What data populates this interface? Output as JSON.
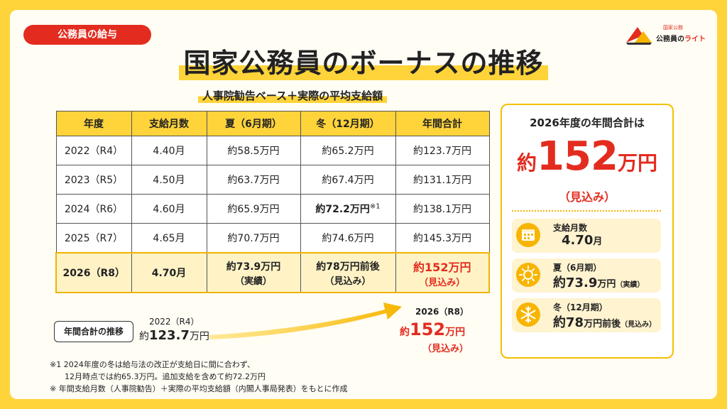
{
  "tag": "公務員の給与",
  "logo": {
    "small": "国家公務",
    "brand_prefix": "公務員の",
    "brand_accent": "ライト"
  },
  "title": "国家公務員のボーナスの推移",
  "subtitle": "人事院勧告ベース＋実際の平均支給額",
  "table": {
    "headers": [
      "年度",
      "支給月数",
      "夏（6月期）",
      "冬（12月期）",
      "年間合計"
    ],
    "rows": [
      [
        "2022（R4）",
        "4.40月",
        "約58.5万円",
        "約65.2万円",
        "約123.7万円"
      ],
      [
        "2023（R5）",
        "4.50月",
        "約63.7万円",
        "約67.4万円",
        "約131.1万円"
      ],
      [
        "2024（R6）",
        "4.60月",
        "約65.9万円",
        "約72.2万円",
        "約138.1万円"
      ],
      [
        "2025（R7）",
        "4.65月",
        "約70.7万円",
        "約74.6万円",
        "約145.3万円"
      ]
    ],
    "note_mark": "※1",
    "highlight": {
      "year": "2026（R8）",
      "months": "4.70月",
      "summer": "約73.9万円",
      "summer_note": "（実績）",
      "winter": "約78万円前後",
      "winter_note": "（見込み）",
      "total": "約152万円",
      "total_note": "（見込み）"
    }
  },
  "trend": {
    "label": "年間合計の推移",
    "start_year": "2022（R4）",
    "start_prefix": "約",
    "start_num": "123.7",
    "start_suffix": "万円",
    "end_year": "2026（R8）",
    "end_prefix": "約",
    "end_num": "152",
    "end_suffix": "万円",
    "end_note": "（見込み）"
  },
  "notes": [
    "※1 2024年度の冬は給与法の改正が支給日に間に合わず、",
    "12月時点では約65.3万円。追加支給を含めて約72.2万円",
    "※ 年間支給月数（人事院勧告）＋実際の平均支給額（内閣人事局発表）をもとに作成"
  ],
  "panel": {
    "heading": "2026年度の年間合計は",
    "prefix": "約",
    "num": "152",
    "suffix": "万円",
    "note": "（見込み）",
    "cards": [
      {
        "l1": "支給月数",
        "value": "4.70",
        "unit": "月",
        "note": ""
      },
      {
        "l1": "夏（6月期）",
        "value": "約73.9",
        "unit": "万円",
        "note": "（実績）"
      },
      {
        "l1": "冬（12月期）",
        "value": "約78",
        "unit": "万円前後",
        "note": "（見込み）"
      }
    ]
  },
  "colors": {
    "accent_red": "#e32c1f",
    "yellow": "#ffd43a"
  }
}
